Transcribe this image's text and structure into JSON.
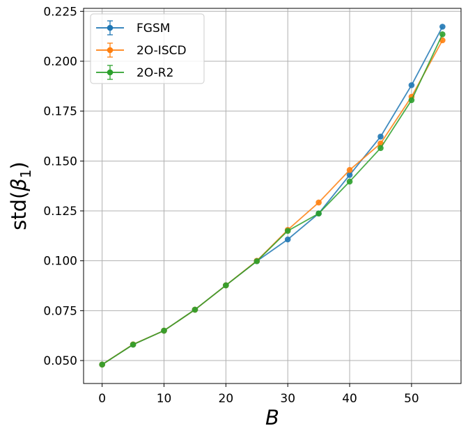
{
  "chart_data": {
    "type": "line",
    "xlabel": "B",
    "ylabel_main": "std(",
    "ylabel_symbol": "β",
    "ylabel_sub": "1",
    "ylabel_close": ")",
    "xlim": [
      -3,
      58
    ],
    "ylim": [
      0.0385,
      0.2265
    ],
    "xticks": [
      0,
      10,
      20,
      30,
      40,
      50
    ],
    "yticks": [
      0.05,
      0.075,
      0.1,
      0.125,
      0.15,
      0.175,
      0.2,
      0.225
    ],
    "ytick_labels": [
      "0.050",
      "0.075",
      "0.100",
      "0.125",
      "0.150",
      "0.175",
      "0.200",
      "0.225"
    ],
    "grid": true,
    "legend_position": "top-left",
    "x": [
      0,
      5,
      10,
      15,
      20,
      25,
      30,
      35,
      40,
      45,
      50,
      55
    ],
    "series": [
      {
        "name": "FGSM",
        "color": "#1f77b4",
        "values": [
          0.048,
          0.058,
          0.065,
          0.0755,
          0.0877,
          0.0998,
          0.1107,
          0.1237,
          0.143,
          0.1622,
          0.188,
          0.2173
        ]
      },
      {
        "name": "2O-ISCD",
        "color": "#ff7f0e",
        "values": [
          0.048,
          0.0581,
          0.065,
          0.0755,
          0.0877,
          0.1,
          0.1155,
          0.1292,
          0.1455,
          0.1588,
          0.1822,
          0.2105
        ]
      },
      {
        "name": "2O-R2",
        "color": "#2ca02c",
        "values": [
          0.048,
          0.058,
          0.065,
          0.0755,
          0.0877,
          0.0998,
          0.115,
          0.1237,
          0.1397,
          0.1565,
          0.1805,
          0.2135
        ]
      }
    ]
  }
}
